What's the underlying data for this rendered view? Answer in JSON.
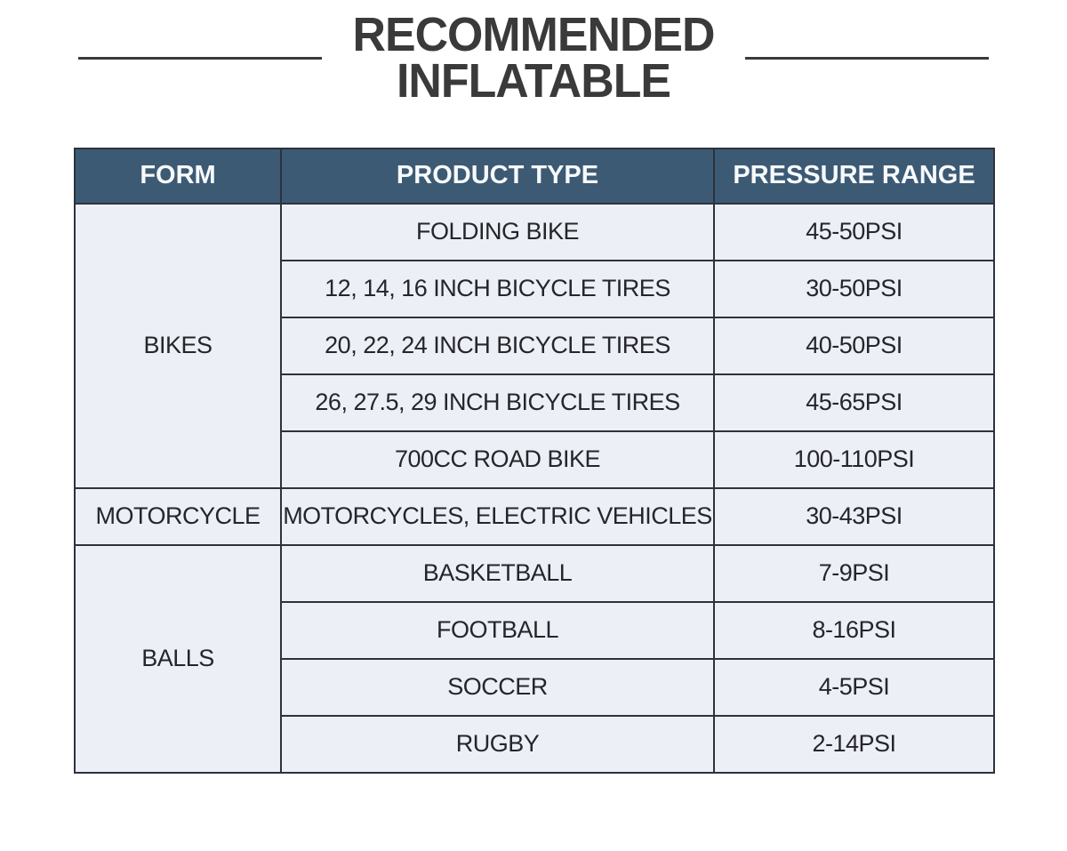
{
  "title": {
    "line1": "RECOMMENDED",
    "line2": "INFLATABLE"
  },
  "table": {
    "headers": [
      "FORM",
      "PRODUCT TYPE",
      "PRESSURE RANGE"
    ],
    "groups": [
      {
        "form": "BIKES",
        "rows": [
          {
            "product": "FOLDING BIKE",
            "pressure": "45-50PSI"
          },
          {
            "product": "12, 14, 16 INCH BICYCLE TIRES",
            "pressure": "30-50PSI"
          },
          {
            "product": "20, 22, 24 INCH BICYCLE TIRES",
            "pressure": "40-50PSI"
          },
          {
            "product": "26, 27.5, 29 INCH BICYCLE TIRES",
            "pressure": "45-65PSI"
          },
          {
            "product": "700CC ROAD BIKE",
            "pressure": "100-110PSI"
          }
        ]
      },
      {
        "form": "MOTORCYCLE",
        "rows": [
          {
            "product": "MOTORCYCLES, ELECTRIC VEHICLES",
            "pressure": "30-43PSI"
          }
        ]
      },
      {
        "form": "BALLS",
        "rows": [
          {
            "product": "BASKETBALL",
            "pressure": "7-9PSI"
          },
          {
            "product": "FOOTBALL",
            "pressure": "8-16PSI"
          },
          {
            "product": "SOCCER",
            "pressure": "4-5PSI"
          },
          {
            "product": "RUGBY",
            "pressure": "2-14PSI"
          }
        ]
      }
    ]
  },
  "colors": {
    "header_bg": "#3c5a74",
    "header_text": "#f7f9fb",
    "body_bg": "#edeff6",
    "border": "#2d323c",
    "title": "#3a3a3a",
    "body_text": "#24262b"
  }
}
